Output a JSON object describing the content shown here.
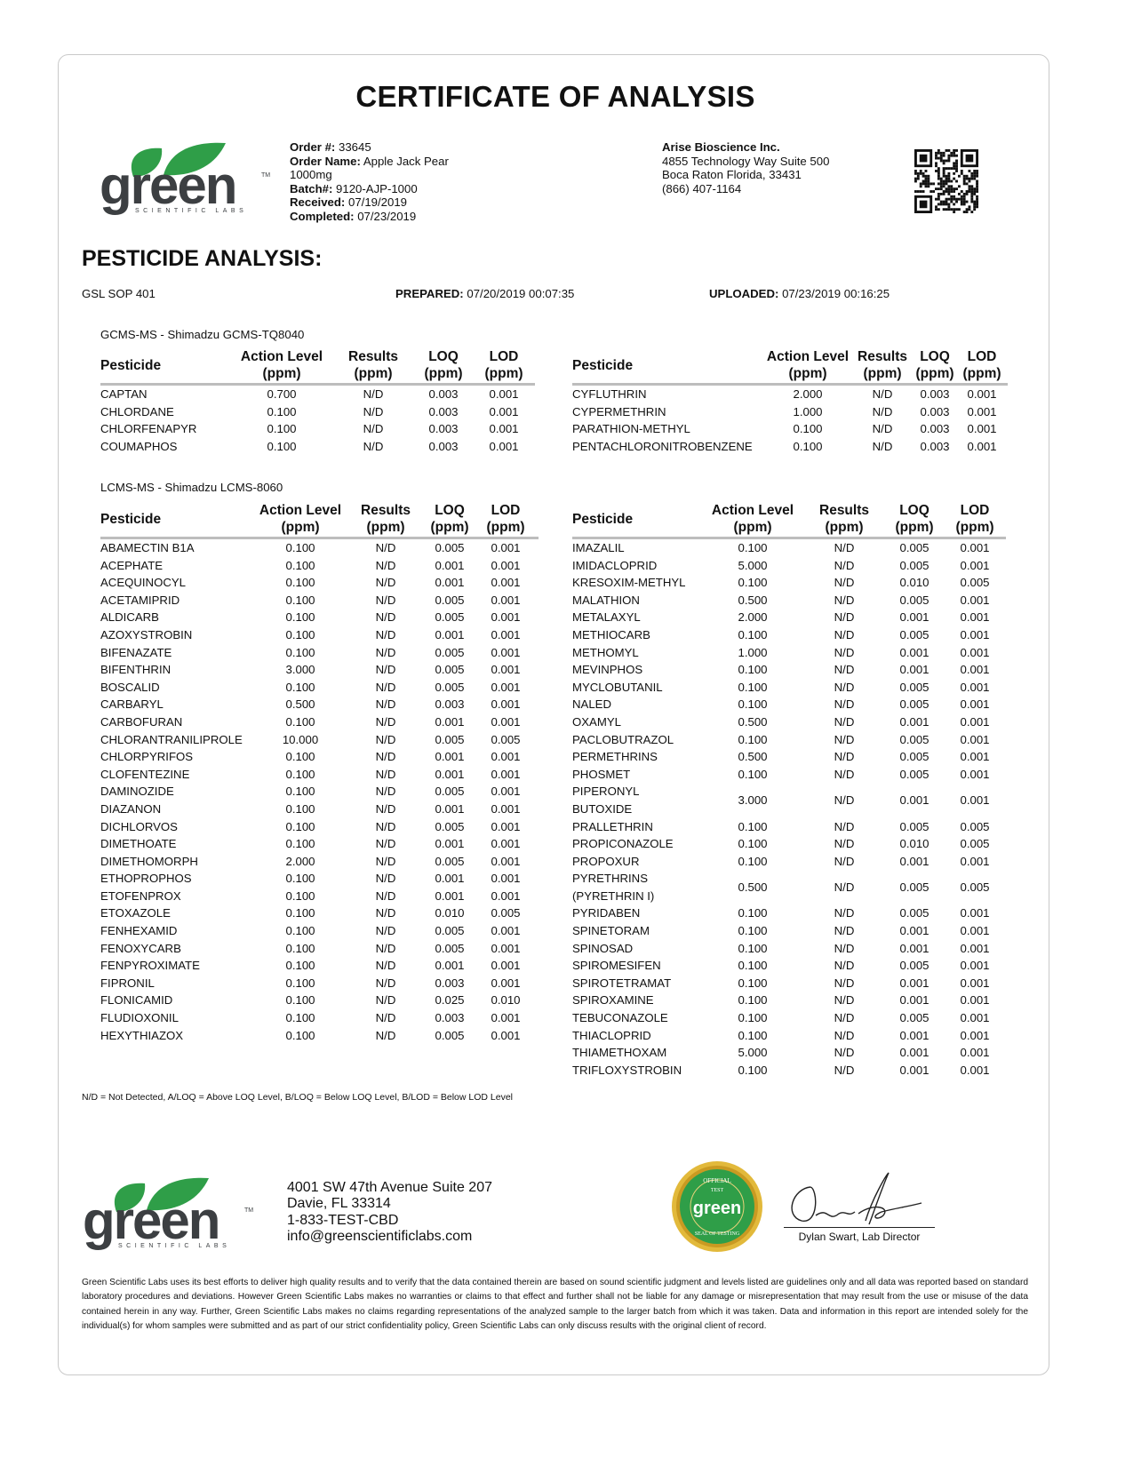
{
  "header": {
    "title": "CERTIFICATE OF ANALYSIS",
    "logo_text": "green",
    "logo_subtext": "SCIENTIFIC LABS",
    "order": {
      "order_no_label": "Order #:",
      "order_no": "33645",
      "order_name_label": "Order Name:",
      "order_name": "Apple Jack Pear",
      "order_name_2": "1000mg",
      "batch_label": "Batch#:",
      "batch": "9120-AJP-1000",
      "received_label": "Received:",
      "received": "07/19/2019",
      "completed_label": "Completed:",
      "completed": "07/23/2019"
    },
    "client": {
      "name": "Arise Bioscience Inc.",
      "address1": "4855 Technology Way Suite 500",
      "address2": "Boca Raton Florida, 33431",
      "phone": "(866) 407-1164"
    },
    "qr_icon": "qr-code"
  },
  "section": {
    "title": "PESTICIDE ANALYSIS:",
    "sop": "GSL SOP 401",
    "prepared_label": "PREPARED:",
    "prepared": "07/20/2019 00:07:35",
    "uploaded_label": "UPLOADED:",
    "uploaded": "07/23/2019 00:16:25"
  },
  "columns": [
    [
      "Pesticide",
      ""
    ],
    [
      "Action Level",
      "(ppm)"
    ],
    [
      "Results",
      "(ppm)"
    ],
    [
      "LOQ",
      "(ppm)"
    ],
    [
      "LOD",
      "(ppm)"
    ]
  ],
  "gcms": {
    "instrument": "GCMS-MS - Shimadzu GCMS-TQ8040",
    "left": [
      [
        "CAPTAN",
        "0.700",
        "N/D",
        "0.003",
        "0.001"
      ],
      [
        "CHLORDANE",
        "0.100",
        "N/D",
        "0.003",
        "0.001"
      ],
      [
        "CHLORFENAPYR",
        "0.100",
        "N/D",
        "0.003",
        "0.001"
      ],
      [
        "COUMAPHOS",
        "0.100",
        "N/D",
        "0.003",
        "0.001"
      ]
    ],
    "right": [
      [
        "CYFLUTHRIN",
        "2.000",
        "N/D",
        "0.003",
        "0.001"
      ],
      [
        "CYPERMETHRIN",
        "1.000",
        "N/D",
        "0.003",
        "0.001"
      ],
      [
        "PARATHION-METHYL",
        "0.100",
        "N/D",
        "0.003",
        "0.001"
      ],
      [
        "PENTACHLORONITROBENZENE",
        "0.100",
        "N/D",
        "0.003",
        "0.001"
      ]
    ]
  },
  "lcms": {
    "instrument": "LCMS-MS - Shimadzu LCMS-8060",
    "left": [
      [
        "ABAMECTIN B1A",
        "0.100",
        "N/D",
        "0.005",
        "0.001"
      ],
      [
        "ACEPHATE",
        "0.100",
        "N/D",
        "0.001",
        "0.001"
      ],
      [
        "ACEQUINOCYL",
        "0.100",
        "N/D",
        "0.001",
        "0.001"
      ],
      [
        "ACETAMIPRID",
        "0.100",
        "N/D",
        "0.005",
        "0.001"
      ],
      [
        "ALDICARB",
        "0.100",
        "N/D",
        "0.005",
        "0.001"
      ],
      [
        "AZOXYSTROBIN",
        "0.100",
        "N/D",
        "0.001",
        "0.001"
      ],
      [
        "BIFENAZATE",
        "0.100",
        "N/D",
        "0.005",
        "0.001"
      ],
      [
        "BIFENTHRIN",
        "3.000",
        "N/D",
        "0.005",
        "0.001"
      ],
      [
        "BOSCALID",
        "0.100",
        "N/D",
        "0.005",
        "0.001"
      ],
      [
        "CARBARYL",
        "0.500",
        "N/D",
        "0.003",
        "0.001"
      ],
      [
        "CARBOFURAN",
        "0.100",
        "N/D",
        "0.001",
        "0.001"
      ],
      [
        "CHLORANTRANILIPROLE",
        "10.000",
        "N/D",
        "0.005",
        "0.005"
      ],
      [
        "CHLORPYRIFOS",
        "0.100",
        "N/D",
        "0.001",
        "0.001"
      ],
      [
        "CLOFENTEZINE",
        "0.100",
        "N/D",
        "0.001",
        "0.001"
      ],
      [
        "DAMINOZIDE",
        "0.100",
        "N/D",
        "0.005",
        "0.001"
      ],
      [
        "DIAZANON",
        "0.100",
        "N/D",
        "0.001",
        "0.001"
      ],
      [
        "DICHLORVOS",
        "0.100",
        "N/D",
        "0.005",
        "0.001"
      ],
      [
        "DIMETHOATE",
        "0.100",
        "N/D",
        "0.001",
        "0.001"
      ],
      [
        "DIMETHOMORPH",
        "2.000",
        "N/D",
        "0.005",
        "0.001"
      ],
      [
        "ETHOPROPHOS",
        "0.100",
        "N/D",
        "0.001",
        "0.001"
      ],
      [
        "ETOFENPROX",
        "0.100",
        "N/D",
        "0.001",
        "0.001"
      ],
      [
        "ETOXAZOLE",
        "0.100",
        "N/D",
        "0.010",
        "0.005"
      ],
      [
        "FENHEXAMID",
        "0.100",
        "N/D",
        "0.005",
        "0.001"
      ],
      [
        "FENOXYCARB",
        "0.100",
        "N/D",
        "0.005",
        "0.001"
      ],
      [
        "FENPYROXIMATE",
        "0.100",
        "N/D",
        "0.001",
        "0.001"
      ],
      [
        "FIPRONIL",
        "0.100",
        "N/D",
        "0.003",
        "0.001"
      ],
      [
        "FLONICAMID",
        "0.100",
        "N/D",
        "0.025",
        "0.010"
      ],
      [
        "FLUDIOXONIL",
        "0.100",
        "N/D",
        "0.003",
        "0.001"
      ],
      [
        "HEXYTHIAZOX",
        "0.100",
        "N/D",
        "0.005",
        "0.001"
      ]
    ],
    "right": [
      [
        "IMAZALIL",
        "0.100",
        "N/D",
        "0.005",
        "0.001"
      ],
      [
        "IMIDACLOPRID",
        "5.000",
        "N/D",
        "0.005",
        "0.001"
      ],
      [
        "KRESOXIM-METHYL",
        "0.100",
        "N/D",
        "0.010",
        "0.005"
      ],
      [
        "MALATHION",
        "0.500",
        "N/D",
        "0.005",
        "0.001"
      ],
      [
        "METALAXYL",
        "2.000",
        "N/D",
        "0.001",
        "0.001"
      ],
      [
        "METHIOCARB",
        "0.100",
        "N/D",
        "0.005",
        "0.001"
      ],
      [
        "METHOMYL",
        "1.000",
        "N/D",
        "0.001",
        "0.001"
      ],
      [
        "MEVINPHOS",
        "0.100",
        "N/D",
        "0.001",
        "0.001"
      ],
      [
        "MYCLOBUTANIL",
        "0.100",
        "N/D",
        "0.005",
        "0.001"
      ],
      [
        "NALED",
        "0.100",
        "N/D",
        "0.005",
        "0.001"
      ],
      [
        "OXAMYL",
        "0.500",
        "N/D",
        "0.001",
        "0.001"
      ],
      [
        "PACLOBUTRAZOL",
        "0.100",
        "N/D",
        "0.005",
        "0.001"
      ],
      [
        "PERMETHRINS",
        "0.500",
        "N/D",
        "0.005",
        "0.001"
      ],
      [
        "PHOSMET",
        "0.100",
        "N/D",
        "0.005",
        "0.001"
      ],
      [
        "PIPERONYL\nBUTOXIDE",
        "3.000",
        "N/D",
        "0.001",
        "0.001"
      ],
      [
        "PRALLETHRIN",
        "0.100",
        "N/D",
        "0.005",
        "0.005"
      ],
      [
        "PROPICONAZOLE",
        "0.100",
        "N/D",
        "0.010",
        "0.005"
      ],
      [
        "PROPOXUR",
        "0.100",
        "N/D",
        "0.001",
        "0.001"
      ],
      [
        "PYRETHRINS\n(PYRETHRIN I)",
        "0.500",
        "N/D",
        "0.005",
        "0.005"
      ],
      [
        "PYRIDABEN",
        "0.100",
        "N/D",
        "0.005",
        "0.001"
      ],
      [
        "SPINETORAM",
        "0.100",
        "N/D",
        "0.001",
        "0.001"
      ],
      [
        "SPINOSAD",
        "0.100",
        "N/D",
        "0.001",
        "0.001"
      ],
      [
        "SPIROMESIFEN",
        "0.100",
        "N/D",
        "0.005",
        "0.001"
      ],
      [
        "SPIROTETRAMAT",
        "0.100",
        "N/D",
        "0.001",
        "0.001"
      ],
      [
        "SPIROXAMINE",
        "0.100",
        "N/D",
        "0.001",
        "0.001"
      ],
      [
        "TEBUCONAZOLE",
        "0.100",
        "N/D",
        "0.005",
        "0.001"
      ],
      [
        "THIACLOPRID",
        "0.100",
        "N/D",
        "0.001",
        "0.001"
      ],
      [
        "THIAMETHOXAM",
        "5.000",
        "N/D",
        "0.001",
        "0.001"
      ],
      [
        "TRIFLOXYSTROBIN",
        "0.100",
        "N/D",
        "0.001",
        "0.001"
      ]
    ]
  },
  "footnote": "N/D = Not Detected, A/LOQ = Above LOQ Level, B/LOQ = Below LOQ Level, B/LOD = Below LOD Level",
  "footer": {
    "address1": "4001 SW 47th Avenue Suite 207",
    "address2": "Davie, FL 33314",
    "phone": "1-833-TEST-CBD",
    "email": "info@greenscientificlabs.com",
    "seal_text": "OFFICIAL TEST green SEAL OF TESTING",
    "signer": "Dylan Swart, Lab Director",
    "disclaimer": "Green Scientific Labs uses its best efforts to deliver high quality results and to verify that the data contained therein are based on sound scientific judgment and levels listed are guidelines only and all data was reported based on standard laboratory procedures and deviations. However Green Scientific Labs makes no warranties or claims to that effect and further shall not be liable for any damage or misrepresentation that may result from the use or misuse of the data contained herein in any way. Further, Green Scientific Labs makes no claims regarding representations of the analyzed sample to the larger batch from which it was taken. Data and information in this report are intended solely for the individual(s) for whom samples were submitted and as part of our strict confidentiality policy, Green Scientific Labs can only discuss results with the original client of record."
  },
  "colors": {
    "brand_green": "#2f9e48",
    "logo_grey": "#3c3f42",
    "rule_grey": "#bdbdbd",
    "seal_gold": "#d4a629"
  }
}
